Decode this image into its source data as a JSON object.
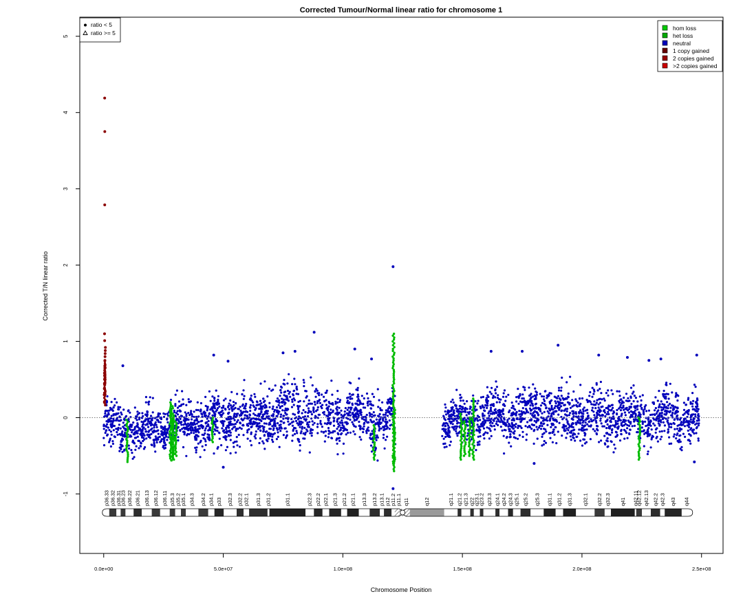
{
  "chart_data": {
    "type": "scatter",
    "title": "Corrected Tumour/Normal linear ratio for chromosome  1",
    "xlabel": "Chromosome Position",
    "ylabel": "Corrected T/N linear ratio",
    "xlim": [
      -10000000,
      259000000
    ],
    "ylim": [
      -1.78,
      5.25
    ],
    "x_ticks": [
      0,
      50000000,
      100000000,
      150000000,
      200000000,
      250000000
    ],
    "x_tick_labels": [
      "0.0e+00",
      "5.0e+07",
      "1.0e+08",
      "1.5e+08",
      "2.0e+08",
      "2.5e+08"
    ],
    "y_ticks": [
      -1,
      0,
      1,
      2,
      3,
      4,
      5
    ],
    "y_tick_labels": [
      "-1",
      "0",
      "1",
      "2",
      "3",
      "4",
      "5"
    ],
    "reference_line": {
      "y": 0,
      "style": "dotted"
    },
    "grid": false,
    "shape_legend": {
      "placement": "top-left",
      "entries": [
        {
          "label": "ratio < 5",
          "marker": "filled-circle"
        },
        {
          "label": "ratio >= 5",
          "marker": "open-triangle"
        }
      ]
    },
    "legend": {
      "placement": "top-right",
      "entries": [
        {
          "label": "hom loss",
          "color": "#00cc00"
        },
        {
          "label": "het loss",
          "color": "#00aa00"
        },
        {
          "label": "neutral",
          "color": "#0000bb"
        },
        {
          "label": "1 copy gained",
          "color": "#660000"
        },
        {
          "label": "2 copies gained",
          "color": "#990000"
        },
        {
          "label": ">2 copies gained",
          "color": "#cc0000"
        }
      ]
    },
    "colors": {
      "neutral": "#0000bb",
      "loss": "#00bb00",
      "gain": "#8b0000",
      "over5": "#cc0000"
    },
    "blocks": [
      {
        "start": 0,
        "end": 122000000,
        "band": 0.36,
        "dense": true
      },
      {
        "start": 141500000,
        "end": 249000000,
        "band": 0.36,
        "dense": true
      }
    ],
    "band_profile": [
      {
        "x": 0,
        "center": -0.1,
        "half_width": 0.33
      },
      {
        "x": 20000000,
        "center": -0.15,
        "half_width": 0.34
      },
      {
        "x": 40000000,
        "center": -0.05,
        "half_width": 0.38
      },
      {
        "x": 60000000,
        "center": 0.0,
        "half_width": 0.42
      },
      {
        "x": 80000000,
        "center": 0.06,
        "half_width": 0.44
      },
      {
        "x": 100000000,
        "center": 0.02,
        "half_width": 0.42
      },
      {
        "x": 115000000,
        "center": -0.04,
        "half_width": 0.4
      },
      {
        "x": 122000000,
        "center": -0.03,
        "half_width": 0.35
      },
      {
        "x": 141500000,
        "center": -0.08,
        "half_width": 0.3
      },
      {
        "x": 160000000,
        "center": 0.02,
        "half_width": 0.38
      },
      {
        "x": 180000000,
        "center": 0.05,
        "half_width": 0.42
      },
      {
        "x": 200000000,
        "center": 0.02,
        "half_width": 0.4
      },
      {
        "x": 220000000,
        "center": 0.0,
        "half_width": 0.38
      },
      {
        "x": 249000000,
        "center": 0.0,
        "half_width": 0.35
      }
    ],
    "gain_points": [
      {
        "x": 200000,
        "y": 0.3
      },
      {
        "x": 300000,
        "y": 0.45
      },
      {
        "x": 350000,
        "y": 0.55
      },
      {
        "x": 400000,
        "y": 0.62
      },
      {
        "x": 450000,
        "y": 0.68
      },
      {
        "x": 500000,
        "y": 0.75
      },
      {
        "x": 550000,
        "y": 0.8
      },
      {
        "x": 600000,
        "y": 0.84
      },
      {
        "x": 650000,
        "y": 0.88
      },
      {
        "x": 700000,
        "y": 0.92
      },
      {
        "x": 400000,
        "y": 1.01
      },
      {
        "x": 350000,
        "y": 1.1
      },
      {
        "x": 300000,
        "y": 0.2
      },
      {
        "x": 250000,
        "y": 0.38
      },
      {
        "x": 500000,
        "y": 0.58
      },
      {
        "x": 600000,
        "y": 0.5
      },
      {
        "x": 450000,
        "y": 0.43
      },
      {
        "x": 550000,
        "y": 0.66
      },
      {
        "x": 420000,
        "y": 2.79
      },
      {
        "x": 450000,
        "y": 3.75
      },
      {
        "x": 400000,
        "y": 4.19
      }
    ],
    "over5_points": [
      {
        "x": 430000,
        "y": 5.01
      }
    ],
    "loss_segments": [
      {
        "x": 9800000,
        "y_min": -0.58,
        "y_max": -0.03
      },
      {
        "x": 28000000,
        "y_min": -0.56,
        "y_max": 0.2
      },
      {
        "x": 28600000,
        "y_min": -0.56,
        "y_max": 0.15
      },
      {
        "x": 29200000,
        "y_min": -0.55,
        "y_max": 0.05
      },
      {
        "x": 30200000,
        "y_min": -0.5,
        "y_max": -0.05
      },
      {
        "x": 45500000,
        "y_min": -0.32,
        "y_max": 0.0
      },
      {
        "x": 113000000,
        "y_min": -0.55,
        "y_max": -0.1
      },
      {
        "x": 121200000,
        "y_min": -0.7,
        "y_max": 1.1
      },
      {
        "x": 121500000,
        "y_min": -0.62,
        "y_max": 0.1
      },
      {
        "x": 149500000,
        "y_min": -0.55,
        "y_max": 0.05
      },
      {
        "x": 151000000,
        "y_min": -0.5,
        "y_max": -0.05
      },
      {
        "x": 153000000,
        "y_min": -0.5,
        "y_max": 0.0
      },
      {
        "x": 154500000,
        "y_min": -0.55,
        "y_max": 0.25
      },
      {
        "x": 224000000,
        "y_min": -0.55,
        "y_max": 0.0
      }
    ],
    "outliers": [
      {
        "x": 88000000,
        "y": 1.12
      },
      {
        "x": 121000000,
        "y": 1.98
      },
      {
        "x": 190000000,
        "y": 0.95
      },
      {
        "x": 8000000,
        "y": 0.68
      },
      {
        "x": 46000000,
        "y": 0.82
      },
      {
        "x": 52000000,
        "y": 0.74
      },
      {
        "x": 75000000,
        "y": 0.85
      },
      {
        "x": 80000000,
        "y": 0.87
      },
      {
        "x": 105000000,
        "y": 0.9
      },
      {
        "x": 112000000,
        "y": 0.77
      },
      {
        "x": 162000000,
        "y": 0.87
      },
      {
        "x": 175000000,
        "y": 0.87
      },
      {
        "x": 207000000,
        "y": 0.82
      },
      {
        "x": 219000000,
        "y": 0.79
      },
      {
        "x": 228000000,
        "y": 0.75
      },
      {
        "x": 233000000,
        "y": 0.77
      },
      {
        "x": 248000000,
        "y": 0.82
      },
      {
        "x": 50000000,
        "y": -0.65
      },
      {
        "x": 180000000,
        "y": -0.6
      },
      {
        "x": 247000000,
        "y": -0.58
      },
      {
        "x": 121000000,
        "y": -0.93
      }
    ],
    "ideogram": {
      "bands": [
        {
          "name": "p36.33",
          "start": 0,
          "end": 2300000,
          "stain": "gneg"
        },
        {
          "name": "p36.32",
          "start": 2300000,
          "end": 5300000,
          "stain": "gpos25"
        },
        {
          "name": "p36.31",
          "start": 5300000,
          "end": 7100000,
          "stain": "gneg"
        },
        {
          "name": "p36.23",
          "start": 7100000,
          "end": 9100000,
          "stain": "gpos25"
        },
        {
          "name": "p36.22",
          "start": 9100000,
          "end": 12500000,
          "stain": "gneg"
        },
        {
          "name": "p36.21",
          "start": 12500000,
          "end": 15900000,
          "stain": "gpos50"
        },
        {
          "name": "p36.13",
          "start": 15900000,
          "end": 20100000,
          "stain": "gneg"
        },
        {
          "name": "p36.12",
          "start": 20100000,
          "end": 23600000,
          "stain": "gpos25"
        },
        {
          "name": "p36.11",
          "start": 23600000,
          "end": 27600000,
          "stain": "gneg"
        },
        {
          "name": "p35.3",
          "start": 27600000,
          "end": 29900000,
          "stain": "gpos25"
        },
        {
          "name": "p35.2",
          "start": 29900000,
          "end": 32300000,
          "stain": "gneg"
        },
        {
          "name": "p35.1",
          "start": 32300000,
          "end": 34300000,
          "stain": "gpos25"
        },
        {
          "name": "p34.3",
          "start": 34300000,
          "end": 39600000,
          "stain": "gneg"
        },
        {
          "name": "p34.2",
          "start": 39600000,
          "end": 43700000,
          "stain": "gpos25"
        },
        {
          "name": "p34.1",
          "start": 43700000,
          "end": 46300000,
          "stain": "gneg"
        },
        {
          "name": "p33",
          "start": 46300000,
          "end": 50200000,
          "stain": "gpos75"
        },
        {
          "name": "p32.3",
          "start": 50200000,
          "end": 55600000,
          "stain": "gneg"
        },
        {
          "name": "p32.2",
          "start": 55600000,
          "end": 58500000,
          "stain": "gpos50"
        },
        {
          "name": "p32.1",
          "start": 58500000,
          "end": 60800000,
          "stain": "gneg"
        },
        {
          "name": "p31.3",
          "start": 60800000,
          "end": 68500000,
          "stain": "gpos50"
        },
        {
          "name": "p31.2",
          "start": 68500000,
          "end": 69300000,
          "stain": "gneg"
        },
        {
          "name": "p31.1",
          "start": 69300000,
          "end": 84400000,
          "stain": "gpos100"
        },
        {
          "name": "p22.3",
          "start": 84400000,
          "end": 87900000,
          "stain": "gneg"
        },
        {
          "name": "p22.2",
          "start": 87900000,
          "end": 91500000,
          "stain": "gpos75"
        },
        {
          "name": "p22.1",
          "start": 91500000,
          "end": 94300000,
          "stain": "gneg"
        },
        {
          "name": "p21.3",
          "start": 94300000,
          "end": 99300000,
          "stain": "gpos75"
        },
        {
          "name": "p21.2",
          "start": 99300000,
          "end": 101800000,
          "stain": "gneg"
        },
        {
          "name": "p21.1",
          "start": 101800000,
          "end": 106700000,
          "stain": "gpos100"
        },
        {
          "name": "p13.3",
          "start": 106700000,
          "end": 111200000,
          "stain": "gneg"
        },
        {
          "name": "p13.2",
          "start": 111200000,
          "end": 115500000,
          "stain": "gpos50"
        },
        {
          "name": "p13.1",
          "start": 115500000,
          "end": 117200000,
          "stain": "gneg"
        },
        {
          "name": "p12",
          "start": 117200000,
          "end": 120400000,
          "stain": "gpos50"
        },
        {
          "name": "p11.2",
          "start": 120400000,
          "end": 121700000,
          "stain": "gneg"
        },
        {
          "name": "p11.1",
          "start": 121700000,
          "end": 125100000,
          "stain": "acen"
        },
        {
          "name": "q11",
          "start": 125100000,
          "end": 128000000,
          "stain": "acen"
        },
        {
          "name": "q12",
          "start": 128000000,
          "end": 142400000,
          "stain": "gvar"
        },
        {
          "name": "q21.1",
          "start": 142400000,
          "end": 148000000,
          "stain": "gneg"
        },
        {
          "name": "q21.2",
          "start": 148000000,
          "end": 149600000,
          "stain": "gpos50"
        },
        {
          "name": "q21.3",
          "start": 149600000,
          "end": 153300000,
          "stain": "gneg"
        },
        {
          "name": "q22",
          "start": 153300000,
          "end": 154800000,
          "stain": "gpos50"
        },
        {
          "name": "q23.1",
          "start": 154800000,
          "end": 157300000,
          "stain": "gneg"
        },
        {
          "name": "q23.2",
          "start": 157300000,
          "end": 158800000,
          "stain": "gpos50"
        },
        {
          "name": "q23.3",
          "start": 158800000,
          "end": 163800000,
          "stain": "gneg"
        },
        {
          "name": "q24.1",
          "start": 163800000,
          "end": 165500000,
          "stain": "gpos50"
        },
        {
          "name": "q24.2",
          "start": 165500000,
          "end": 169100000,
          "stain": "gneg"
        },
        {
          "name": "q24.3",
          "start": 169100000,
          "end": 171200000,
          "stain": "gpos75"
        },
        {
          "name": "q25.1",
          "start": 171200000,
          "end": 174300000,
          "stain": "gneg"
        },
        {
          "name": "q25.2",
          "start": 174300000,
          "end": 178500000,
          "stain": "gpos50"
        },
        {
          "name": "q25.3",
          "start": 178500000,
          "end": 184000000,
          "stain": "gneg"
        },
        {
          "name": "q31.1",
          "start": 184000000,
          "end": 189000000,
          "stain": "gpos100"
        },
        {
          "name": "q31.2",
          "start": 189000000,
          "end": 192100000,
          "stain": "gneg"
        },
        {
          "name": "q31.3",
          "start": 192100000,
          "end": 197500000,
          "stain": "gpos100"
        },
        {
          "name": "q32.1",
          "start": 197500000,
          "end": 205300000,
          "stain": "gneg"
        },
        {
          "name": "q32.2",
          "start": 205300000,
          "end": 209500000,
          "stain": "gpos25"
        },
        {
          "name": "q32.3",
          "start": 209500000,
          "end": 212100000,
          "stain": "gneg"
        },
        {
          "name": "q41",
          "start": 212100000,
          "end": 222100000,
          "stain": "gpos100"
        },
        {
          "name": "q42.11",
          "start": 222100000,
          "end": 222700000,
          "stain": "gneg"
        },
        {
          "name": "q42.12",
          "start": 222700000,
          "end": 225100000,
          "stain": "gpos25"
        },
        {
          "name": "q42.13",
          "start": 225100000,
          "end": 228800000,
          "stain": "gneg"
        },
        {
          "name": "q42.2",
          "start": 228800000,
          "end": 232700000,
          "stain": "gpos50"
        },
        {
          "name": "q42.3",
          "start": 232700000,
          "end": 234600000,
          "stain": "gneg"
        },
        {
          "name": "q43",
          "start": 234600000,
          "end": 241700000,
          "stain": "gpos75"
        },
        {
          "name": "q44",
          "start": 241700000,
          "end": 245700000,
          "stain": "gneg"
        }
      ],
      "length": 245700000,
      "centromere": 125000000
    }
  }
}
